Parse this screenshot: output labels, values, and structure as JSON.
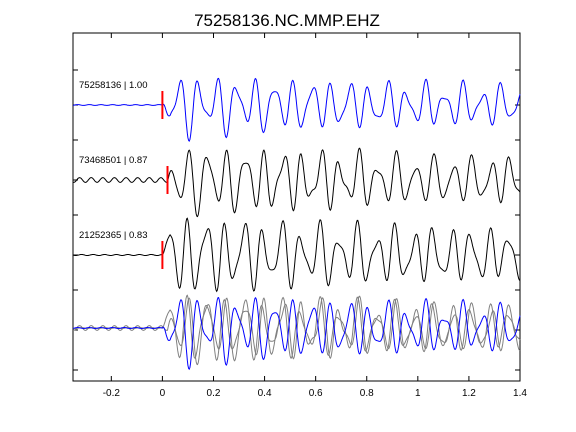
{
  "chart_data": {
    "type": "line",
    "title": "75258136.NC.MMP.EHZ",
    "xlim": [
      -0.35,
      1.4
    ],
    "x_ticks": [
      "-0.2",
      "0",
      "0.2",
      "0.4",
      "0.6",
      "0.8",
      "1",
      "1.2",
      "1.4"
    ],
    "x_tick_values": [
      -0.2,
      0,
      0.2,
      0.4,
      0.6,
      0.8,
      1,
      1.2,
      1.4
    ],
    "xlabel": "",
    "ylabel": "",
    "grid": false,
    "pick_time": 0,
    "colors": {
      "reference": "#0000ff",
      "other": "#000000",
      "overlay_other": "#808080",
      "pick": "#ff0000"
    },
    "traces": [
      {
        "label": "75258136 | 1.00",
        "event_id": "75258136",
        "correlation": 1.0,
        "color": "#0000ff",
        "pick_offset": 0.0,
        "noise": 0.05,
        "seed": 1
      },
      {
        "label": "73468501 | 0.87",
        "event_id": "73468501",
        "correlation": 0.87,
        "color": "#000000",
        "pick_offset": 0.02,
        "noise": 0.25,
        "seed": 2
      },
      {
        "label": "21252365 | 0.83",
        "event_id": "21252365",
        "correlation": 0.83,
        "color": "#000000",
        "pick_offset": 0.0,
        "noise": 0.05,
        "seed": 3
      }
    ],
    "overlay": {
      "label": "",
      "description": "stack of aligned traces"
    }
  }
}
